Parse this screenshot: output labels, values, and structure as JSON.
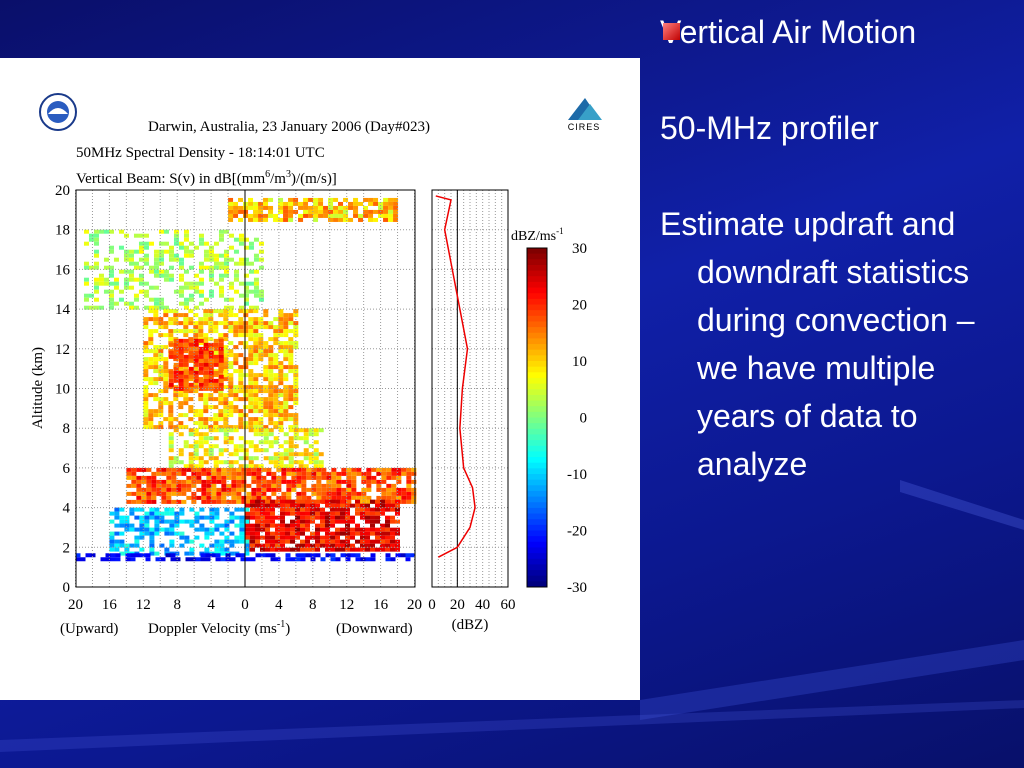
{
  "slide": {
    "bullet": "Vertical Air Motion",
    "paragraphs": [
      "50-MHz profiler",
      "Estimate updraft and downdraft statistics during convection – we have multiple years of data to analyze"
    ]
  },
  "figure": {
    "title": "Darwin, Australia, 23 January 2006 (Day#023)",
    "subtitle": "50MHz Spectral Density - 18:14:01 UTC",
    "beam": [
      "Vertical Beam: S(v) in dB[(mm",
      "6",
      "/m",
      "3",
      ")/(m/s)]"
    ],
    "y_label": "Altitude (km)",
    "y_ticks": [
      "0",
      "2",
      "4",
      "6",
      "8",
      "10",
      "12",
      "14",
      "16",
      "18",
      "20"
    ],
    "x_ticks": [
      "20",
      "16",
      "12",
      "8",
      "4",
      "0",
      "4",
      "8",
      "12",
      "16",
      "20"
    ],
    "x_label": [
      "(Upward)",
      "Doppler Velocity (ms",
      "-1",
      ")",
      "(Downward)"
    ],
    "dbz_ticks": [
      "0",
      "20",
      "40",
      "60"
    ],
    "dbz_label": "(dBZ)",
    "colorbar_label": [
      "dBZ/ms",
      "-1"
    ],
    "colorbar_ticks": [
      "30",
      "20",
      "10",
      "0",
      "-10",
      "-20",
      "-30"
    ],
    "logo": "CIRES"
  }
}
